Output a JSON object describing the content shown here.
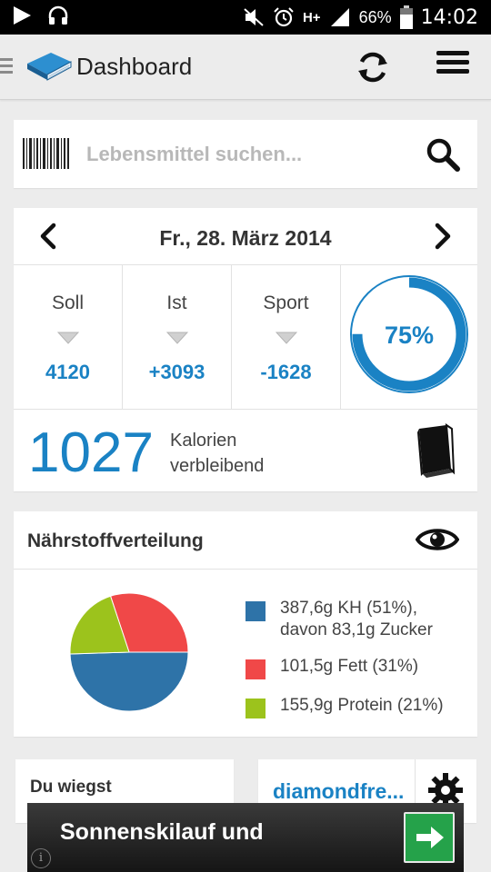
{
  "status_bar": {
    "battery": "66%",
    "network": "H+",
    "time": "14:02",
    "icons": [
      "play-icon",
      "headphones-icon",
      "mute-icon",
      "alarm-icon",
      "network-icon",
      "signal-icon",
      "battery-icon"
    ]
  },
  "appbar": {
    "title": "Dashboard",
    "icons": [
      "app-logo-book-icon",
      "sync-icon",
      "menu-icon"
    ]
  },
  "search": {
    "placeholder": "Lebensmittel suchen...",
    "value": "",
    "icons": [
      "barcode-icon",
      "search-icon"
    ]
  },
  "day": {
    "date": "Fr., 28. März 2014",
    "stats": [
      {
        "label": "Soll",
        "value": "4120"
      },
      {
        "label": "Ist",
        "value": "+3093"
      },
      {
        "label": "Sport",
        "value": "-1628"
      }
    ],
    "progress": {
      "label": "75%",
      "value": 0.75
    },
    "remaining": {
      "value": "1027",
      "label_line1": "Kalorien",
      "label_line2": "verbleibend"
    }
  },
  "nutrients": {
    "title": "Nährstoffverteilung",
    "items": [
      {
        "line1": "387,6g KH (51%),",
        "line2": "davon 83,1g Zucker",
        "color": "#2e73a8",
        "percent": 51
      },
      {
        "line1": "101,5g Fett (31%)",
        "line2": "",
        "color": "#f04848",
        "percent": 31
      },
      {
        "line1": "155,9g Protein (21%)",
        "line2": "",
        "color": "#9cc31c",
        "percent": 21
      }
    ]
  },
  "weight": {
    "label": "Du wiegst"
  },
  "user": {
    "name": "diamondfre..."
  },
  "ad": {
    "text": "Sonnenskilauf und",
    "info": "i"
  },
  "colors": {
    "accent": "#1a82c4",
    "background": "#ececec",
    "ad_button": "#25a24a"
  }
}
